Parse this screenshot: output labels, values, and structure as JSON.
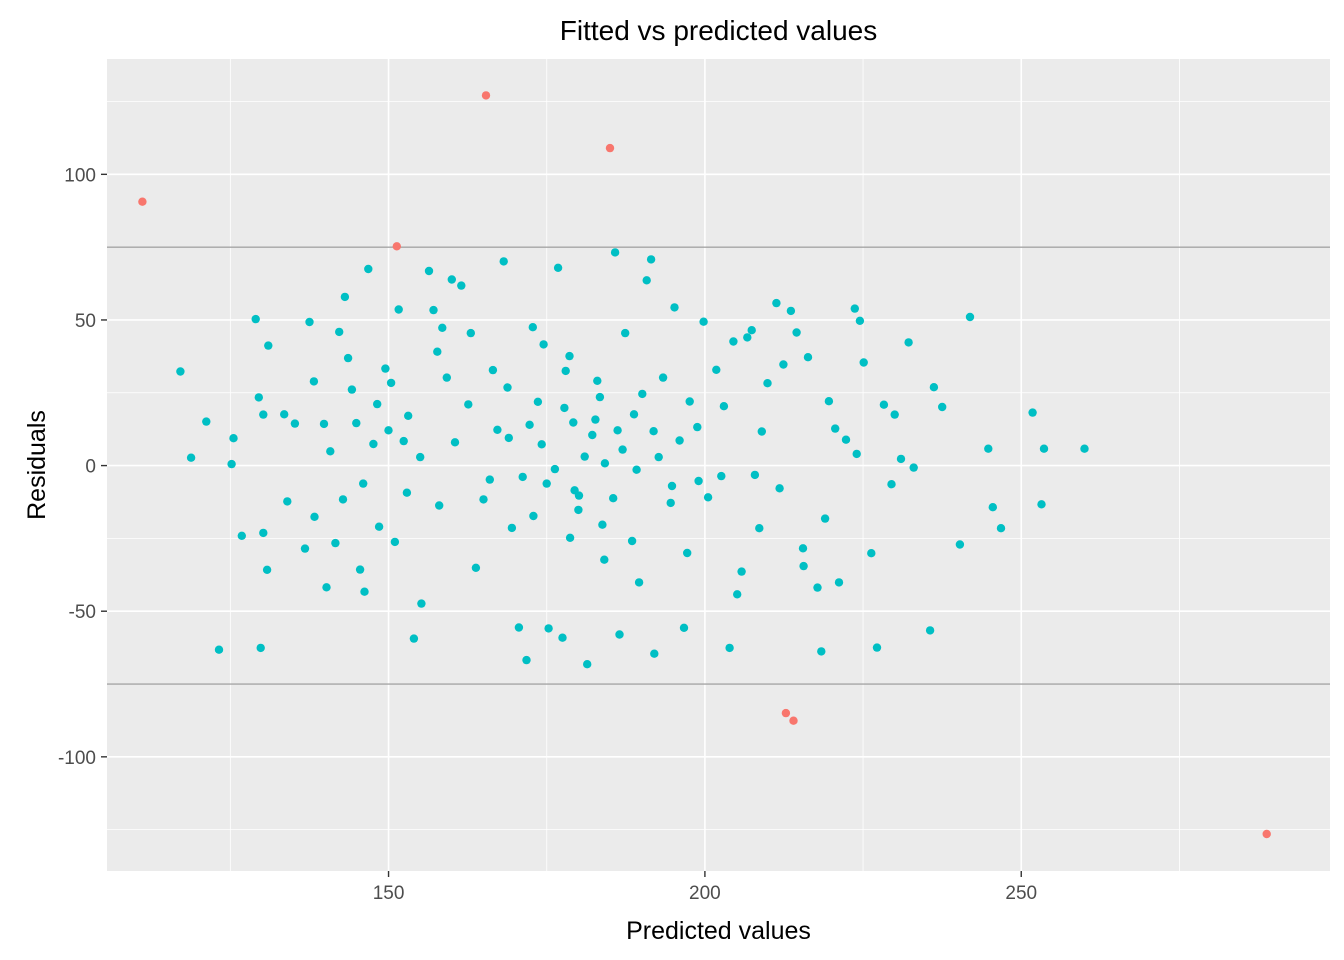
{
  "chart_data": {
    "type": "scatter",
    "title": "Fitted vs predicted values",
    "xlabel": "Predicted values",
    "ylabel": "Residuals",
    "xlim": [
      105.5,
      298.8
    ],
    "ylim": [
      -139.2,
      139.6
    ],
    "x_ticks": [
      150,
      200,
      250
    ],
    "x_tick_labels": [
      "150",
      "200",
      "250"
    ],
    "y_ticks": [
      -100,
      -50,
      0,
      50,
      100
    ],
    "y_tick_labels": [
      "-100",
      "-50",
      "0",
      "50",
      "100"
    ],
    "grid": true,
    "legend": "none",
    "threshold_lines": [
      75,
      -75
    ],
    "colors": {
      "panel_background": "#ebebeb",
      "grid_major": "#ffffff",
      "threshold_line": "#a6a6a6",
      "inlier": "#00bfc4",
      "outlier": "#f8766d"
    },
    "series": [
      {
        "color": "#f8766d",
        "points": [
          [
            111.1,
            90.6
          ],
          [
            165.4,
            127.1
          ],
          [
            185.0,
            109.0
          ],
          [
            151.3,
            75.3
          ],
          [
            212.8,
            -85.0
          ],
          [
            214.0,
            -87.6
          ],
          [
            288.8,
            -126.5
          ]
        ]
      },
      {
        "color": "#00bfc4",
        "points": [
          [
            117.1,
            32.3
          ],
          [
            118.8,
            2.7
          ],
          [
            121.2,
            15.1
          ],
          [
            123.2,
            -63.2
          ],
          [
            125.5,
            9.4
          ],
          [
            125.2,
            0.5
          ],
          [
            126.8,
            -24.1
          ],
          [
            129.0,
            50.3
          ],
          [
            130.2,
            17.5
          ],
          [
            131.0,
            41.2
          ],
          [
            129.5,
            23.4
          ],
          [
            130.2,
            -23.1
          ],
          [
            130.8,
            -35.8
          ],
          [
            129.8,
            -62.6
          ],
          [
            133.5,
            17.6
          ],
          [
            134.0,
            -12.3
          ],
          [
            135.2,
            14.4
          ],
          [
            136.8,
            -28.5
          ],
          [
            137.5,
            49.3
          ],
          [
            138.2,
            28.9
          ],
          [
            139.8,
            14.3
          ],
          [
            140.2,
            -41.8
          ],
          [
            141.6,
            -26.6
          ],
          [
            142.2,
            45.9
          ],
          [
            143.1,
            57.9
          ],
          [
            143.6,
            36.9
          ],
          [
            144.9,
            14.6
          ],
          [
            145.5,
            -35.7
          ],
          [
            146.2,
            -43.3
          ],
          [
            146.8,
            67.5
          ],
          [
            147.6,
            7.4
          ],
          [
            148.2,
            21.1
          ],
          [
            149.5,
            33.3
          ],
          [
            150.4,
            28.4
          ],
          [
            151.0,
            -26.2
          ],
          [
            151.6,
            53.6
          ],
          [
            152.4,
            8.4
          ],
          [
            153.1,
            17.1
          ],
          [
            154.0,
            -59.4
          ],
          [
            155.2,
            -47.4
          ],
          [
            156.4,
            66.8
          ],
          [
            157.1,
            53.4
          ],
          [
            158.5,
            47.3
          ],
          [
            159.2,
            30.2
          ],
          [
            160.0,
            63.9
          ],
          [
            161.5,
            61.8
          ],
          [
            162.6,
            21.0
          ],
          [
            163.8,
            -35.1
          ],
          [
            165.0,
            -11.6
          ],
          [
            166.5,
            32.8
          ],
          [
            167.2,
            12.3
          ],
          [
            168.2,
            70.1
          ],
          [
            169.5,
            -21.4
          ],
          [
            170.6,
            -55.6
          ],
          [
            171.8,
            -66.8
          ],
          [
            172.8,
            47.5
          ],
          [
            173.6,
            21.9
          ],
          [
            174.5,
            41.6
          ],
          [
            175.3,
            -55.9
          ],
          [
            176.8,
            67.9
          ],
          [
            177.5,
            -59.1
          ],
          [
            178.6,
            37.6
          ],
          [
            179.2,
            14.8
          ],
          [
            180.1,
            -10.3
          ],
          [
            181.4,
            -68.2
          ],
          [
            182.2,
            10.5
          ],
          [
            183.0,
            29.1
          ],
          [
            184.1,
            -32.3
          ],
          [
            185.8,
            73.2
          ],
          [
            186.5,
            -58.0
          ],
          [
            187.4,
            45.5
          ],
          [
            188.8,
            17.6
          ],
          [
            189.6,
            -40.1
          ],
          [
            190.8,
            63.6
          ],
          [
            191.5,
            70.8
          ],
          [
            192.0,
            -64.6
          ],
          [
            193.4,
            30.2
          ],
          [
            194.6,
            -12.8
          ],
          [
            195.2,
            54.3
          ],
          [
            196.7,
            -55.7
          ],
          [
            197.6,
            22.0
          ],
          [
            198.8,
            13.2
          ],
          [
            199.8,
            49.4
          ],
          [
            200.5,
            -10.9
          ],
          [
            201.8,
            32.9
          ],
          [
            202.6,
            -3.6
          ],
          [
            203.9,
            -62.6
          ],
          [
            204.5,
            42.6
          ],
          [
            205.1,
            -44.2
          ],
          [
            206.7,
            44.0
          ],
          [
            207.4,
            46.5
          ],
          [
            208.6,
            -21.5
          ],
          [
            209.9,
            28.3
          ],
          [
            211.3,
            55.8
          ],
          [
            212.4,
            34.7
          ],
          [
            213.6,
            53.1
          ],
          [
            214.5,
            45.7
          ],
          [
            215.6,
            -34.5
          ],
          [
            216.3,
            37.2
          ],
          [
            217.8,
            -41.9
          ],
          [
            218.4,
            -63.8
          ],
          [
            219.6,
            22.1
          ],
          [
            220.6,
            12.7
          ],
          [
            221.2,
            -40.1
          ],
          [
            222.3,
            8.9
          ],
          [
            223.7,
            53.9
          ],
          [
            224.5,
            49.7
          ],
          [
            225.1,
            35.4
          ],
          [
            226.3,
            -30.1
          ],
          [
            227.2,
            -62.5
          ],
          [
            228.3,
            20.9
          ],
          [
            229.5,
            -6.4
          ],
          [
            231.0,
            2.3
          ],
          [
            232.2,
            42.3
          ],
          [
            233.0,
            -0.7
          ],
          [
            235.6,
            -56.6
          ],
          [
            236.2,
            26.9
          ],
          [
            237.5,
            20.1
          ],
          [
            240.3,
            -27.1
          ],
          [
            241.9,
            51.0
          ],
          [
            244.8,
            5.8
          ],
          [
            245.5,
            -14.3
          ],
          [
            246.8,
            -21.5
          ],
          [
            251.8,
            18.2
          ],
          [
            253.2,
            -13.3
          ],
          [
            253.6,
            5.8
          ],
          [
            260.0,
            5.8
          ],
          [
            219.0,
            -18.2
          ],
          [
            215.5,
            -28.4
          ],
          [
            209.0,
            11.7
          ],
          [
            205.8,
            -36.4
          ],
          [
            199.0,
            -5.3
          ],
          [
            203.0,
            20.4
          ],
          [
            196.0,
            8.6
          ],
          [
            188.5,
            -25.9
          ],
          [
            175.0,
            -6.2
          ],
          [
            172.3,
            14.0
          ],
          [
            166.0,
            -4.8
          ],
          [
            160.5,
            8.0
          ],
          [
            158.0,
            -13.7
          ],
          [
            155.0,
            2.9
          ],
          [
            150.0,
            12.1
          ],
          [
            148.5,
            -21.0
          ],
          [
            146.0,
            -6.2
          ],
          [
            142.8,
            -11.6
          ],
          [
            140.8,
            4.9
          ],
          [
            138.3,
            -17.6
          ],
          [
            144.2,
            26.1
          ],
          [
            152.9,
            -9.3
          ],
          [
            157.7,
            39.1
          ],
          [
            163.0,
            45.5
          ],
          [
            168.8,
            26.8
          ],
          [
            178.0,
            32.5
          ],
          [
            183.8,
            -20.3
          ],
          [
            191.9,
            11.8
          ],
          [
            197.2,
            -30.0
          ],
          [
            207.9,
            -3.2
          ],
          [
            211.8,
            -7.8
          ],
          [
            224.0,
            4.0
          ],
          [
            230.0,
            17.5
          ],
          [
            181.0,
            3.1
          ],
          [
            184.2,
            0.8
          ],
          [
            176.3,
            -1.2
          ],
          [
            187.0,
            5.5
          ],
          [
            179.4,
            -8.5
          ],
          [
            189.2,
            -1.4
          ],
          [
            174.2,
            7.3
          ],
          [
            182.7,
            15.8
          ],
          [
            180.0,
            -15.2
          ],
          [
            186.2,
            12.1
          ],
          [
            177.8,
            19.8
          ],
          [
            192.7,
            2.9
          ],
          [
            171.2,
            -3.9
          ],
          [
            194.8,
            -7.0
          ],
          [
            169.0,
            9.5
          ],
          [
            185.5,
            -11.2
          ],
          [
            183.4,
            23.5
          ],
          [
            178.7,
            -24.8
          ],
          [
            190.1,
            24.6
          ],
          [
            172.9,
            -17.3
          ]
        ]
      }
    ]
  }
}
